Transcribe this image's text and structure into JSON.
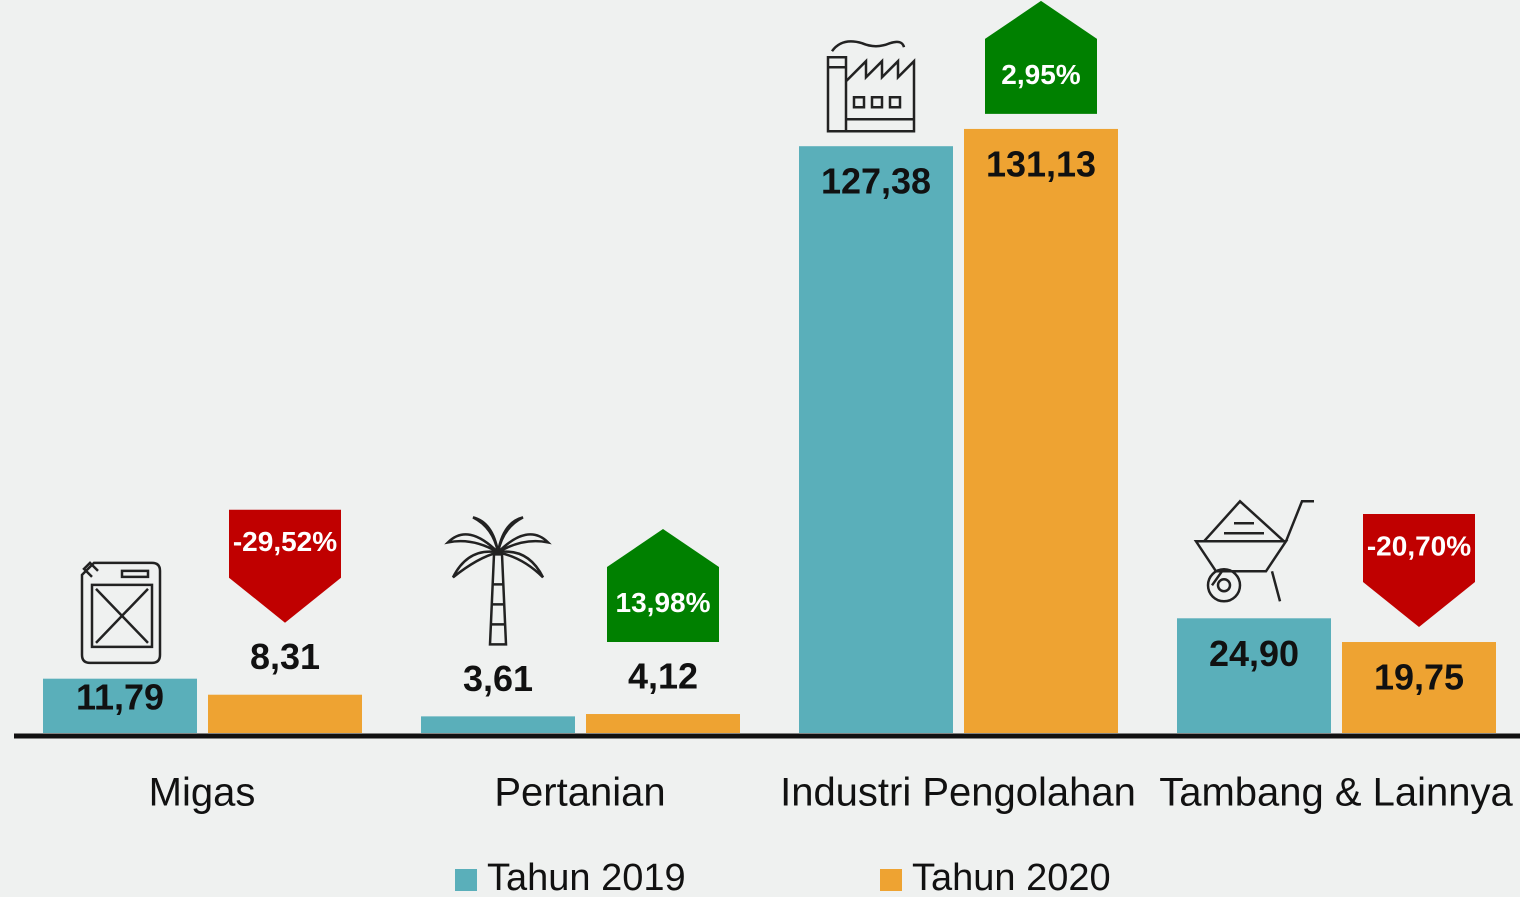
{
  "chart_data": {
    "type": "bar",
    "categories": [
      "Migas",
      "Pertanian",
      "Industri Pengolahan",
      "Tambang & Lainnya"
    ],
    "series": [
      {
        "name": "Tahun 2019",
        "color": "#5aafba",
        "values": [
          11.79,
          3.61,
          127.38,
          24.9
        ],
        "value_labels": [
          "11,79",
          "3,61",
          "127,38",
          "24,90"
        ]
      },
      {
        "name": "Tahun 2020",
        "color": "#eea332",
        "values": [
          8.31,
          4.12,
          131.13,
          19.75
        ],
        "value_labels": [
          "8,31",
          "4,12",
          "131,13",
          "19,75"
        ]
      }
    ],
    "changes": [
      {
        "value": -29.52,
        "label": "-29,52%"
      },
      {
        "value": 13.98,
        "label": "13,98%"
      },
      {
        "value": 2.95,
        "label": "2,95%"
      },
      {
        "value": -20.7,
        "label": "-20,70%"
      }
    ],
    "up_color": "#008000",
    "down_color": "#c00000",
    "ylim": [
      0,
      150
    ]
  }
}
